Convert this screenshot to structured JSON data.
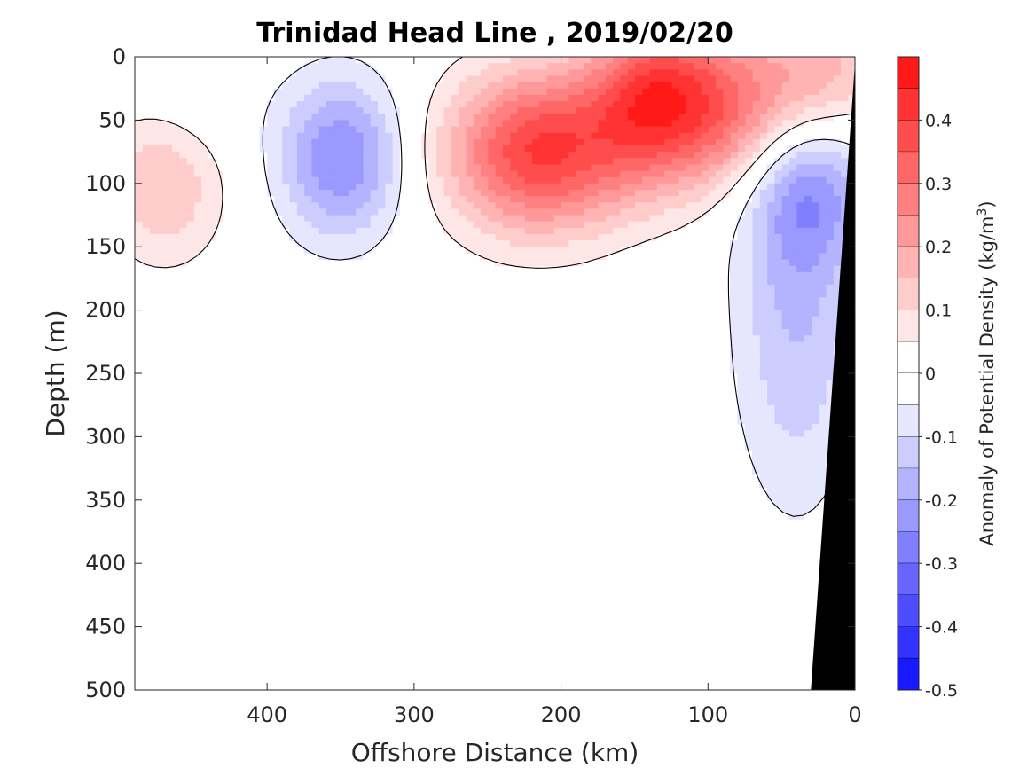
{
  "chart_data": {
    "type": "heatmap",
    "title": "Trinidad Head Line , 2019/02/20",
    "xlabel": "Offshore Distance (km)",
    "ylabel": "Depth (m)",
    "colorbar_label": "Anomaly of Potential Density (kg/m",
    "colorbar_label_sup": "3",
    "colorbar_label_close": ")",
    "xlim": [
      490,
      0
    ],
    "ylim": [
      500,
      0
    ],
    "x_axis_reversed": true,
    "y_axis_reversed": true,
    "xticks": [
      "400",
      "300",
      "200",
      "100",
      "0"
    ],
    "xtick_values": [
      400,
      300,
      200,
      100,
      0
    ],
    "yticks": [
      "0",
      "50",
      "100",
      "150",
      "200",
      "250",
      "300",
      "350",
      "400",
      "450",
      "500"
    ],
    "ytick_values": [
      0,
      50,
      100,
      150,
      200,
      250,
      300,
      350,
      400,
      450,
      500
    ],
    "colorbar_ticks": [
      "0.4",
      "0.3",
      "0.2",
      "0.1",
      "0",
      "-0.1",
      "-0.2",
      "-0.3",
      "-0.4",
      "-0.5"
    ],
    "colorbar_tick_values": [
      0.4,
      0.3,
      0.2,
      0.1,
      0,
      -0.1,
      -0.2,
      -0.3,
      -0.4,
      -0.5
    ],
    "clim": [
      -0.5,
      0.5
    ],
    "contour_interval": 0.05,
    "zero_contour": true,
    "colormap": "blue-white-red",
    "colors": {
      "positive_max": "#ff0000",
      "negative_max": "#0000ff",
      "neutral": "#ffffff",
      "contour": "#000000",
      "bathymetry": "#000000"
    },
    "features": [
      {
        "name": "positive anomaly core",
        "x": 215,
        "depth": 75,
        "value": 0.4
      },
      {
        "name": "positive anomaly",
        "x": 90,
        "depth": 40,
        "value": 0.3
      },
      {
        "name": "positive anomaly",
        "x": 140,
        "depth": 30,
        "value": 0.25
      },
      {
        "name": "positive anomaly",
        "x": 470,
        "depth": 100,
        "value": 0.15
      },
      {
        "name": "positive anomaly",
        "x": 20,
        "depth": 10,
        "value": 0.15
      },
      {
        "name": "negative anomaly core",
        "x": 350,
        "depth": 80,
        "value": -0.25
      },
      {
        "name": "negative anomaly",
        "x": 30,
        "depth": 100,
        "value": -0.2
      },
      {
        "name": "negative anomaly",
        "x": 40,
        "depth": 200,
        "value": -0.15
      },
      {
        "name": "negative anomaly",
        "x": 450,
        "depth": 20,
        "value": -0.05
      }
    ]
  }
}
